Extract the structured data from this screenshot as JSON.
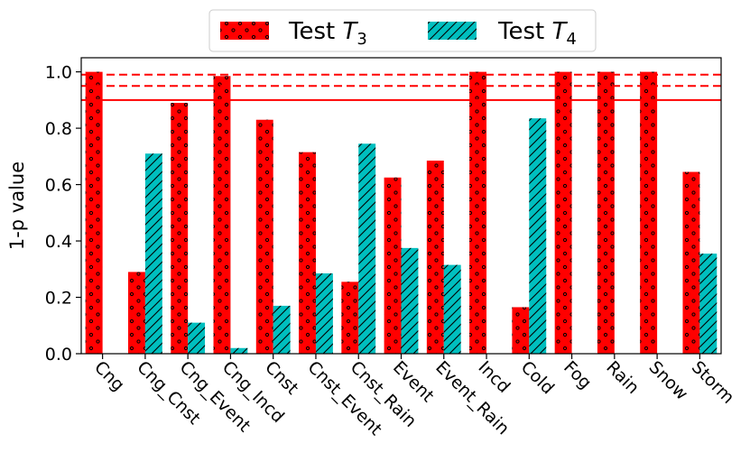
{
  "chart_data": {
    "type": "bar",
    "categories": [
      "Cng",
      "Cng_Cnst",
      "Cng_Event",
      "Cng_Incd",
      "Cnst",
      "Cnst_Event",
      "Cnst_Rain",
      "Event",
      "Event_Rain",
      "Incd",
      "Cold",
      "Fog",
      "Rain",
      "Snow",
      "Storm"
    ],
    "series": [
      {
        "name_prefix": "Test ",
        "name_symbol": "T",
        "name_subscript": "3",
        "color": "#ff0000",
        "hatch": "dots",
        "values": [
          1.0,
          0.29,
          0.89,
          0.985,
          0.83,
          0.715,
          0.255,
          0.625,
          0.685,
          1.0,
          0.165,
          1.0,
          1.0,
          1.0,
          0.645
        ]
      },
      {
        "name_prefix": "Test ",
        "name_symbol": "T",
        "name_subscript": "4",
        "color": "#00bfbf",
        "hatch": "diagonal",
        "values": [
          0.0,
          0.71,
          0.11,
          0.02,
          0.17,
          0.285,
          0.745,
          0.375,
          0.315,
          0.0,
          0.835,
          0.0,
          0.0,
          0.0,
          0.355
        ]
      }
    ],
    "ylabel": "1-p value",
    "ylim": [
      0,
      1.05
    ],
    "yticks": [
      "0.0",
      "0.2",
      "0.4",
      "0.6",
      "0.8",
      "1.0"
    ],
    "reference_lines": [
      {
        "value": 0.9,
        "style": "solid",
        "color": "#ff0000"
      },
      {
        "value": 0.95,
        "style": "dashed",
        "color": "#ff0000"
      },
      {
        "value": 0.99,
        "style": "dashed",
        "color": "#ff0000"
      }
    ],
    "legend_position": "top-center",
    "grid": false
  }
}
